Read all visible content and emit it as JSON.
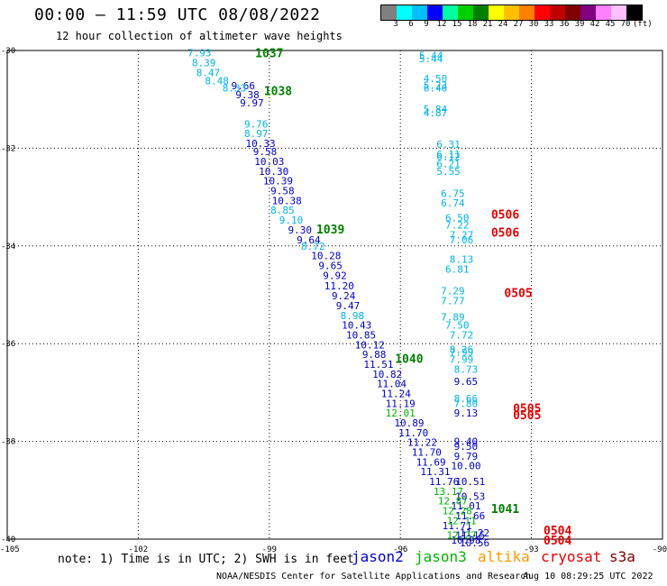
{
  "header": {
    "title": "00:00 – 11:59 UTC 08/08/2022",
    "subtitle": "12 hour collection of altimeter wave heights"
  },
  "colorbar": {
    "colors": [
      "#808080",
      "#00ffff",
      "#00c0ff",
      "#0000ff",
      "#00ffa0",
      "#00d000",
      "#008000",
      "#ffff00",
      "#ffc000",
      "#ff8000",
      "#ff0000",
      "#c00000",
      "#800000",
      "#800080",
      "#ff80ff",
      "#ffc0ff",
      "#000000"
    ],
    "labels": [
      "3",
      "6",
      "9",
      "12",
      "15",
      "18",
      "21",
      "24",
      "27",
      "30",
      "33",
      "36",
      "39",
      "42",
      "45",
      "70"
    ],
    "unit": "(ft)"
  },
  "chart_data": {
    "type": "scatter",
    "xlim": [
      -105,
      -90
    ],
    "ylim": [
      -40,
      -30
    ],
    "x_ticks": [
      -105,
      -102,
      -99,
      -96,
      -93,
      -90
    ],
    "x_tick_labels": [
      "-105",
      "-102",
      "-99",
      "-96",
      "-93",
      "-90"
    ],
    "y_ticks": [
      -30,
      -32,
      -34,
      -36,
      -38,
      -40
    ],
    "y_tick_labels": [
      "-30",
      "-32",
      "-34",
      "-36",
      "-38",
      "-40"
    ],
    "grid": true,
    "series": [
      {
        "name": "jason2",
        "color": "#0000c8",
        "points": [
          [
            -99.6,
            -30.72,
            "9.66"
          ],
          [
            -99.5,
            -30.9,
            "9.38"
          ],
          [
            -99.4,
            -31.07,
            "9.97"
          ],
          [
            -99.2,
            -31.9,
            "10.33"
          ],
          [
            -99.1,
            -32.07,
            "9.58"
          ],
          [
            -99.0,
            -32.27,
            "10.03"
          ],
          [
            -98.9,
            -32.47,
            "10.30"
          ],
          [
            -98.8,
            -32.67,
            "10.39"
          ],
          [
            -98.7,
            -32.87,
            "9.58"
          ],
          [
            -98.6,
            -33.07,
            "10.38"
          ],
          [
            -98.3,
            -33.67,
            "9.30"
          ],
          [
            -98.1,
            -33.87,
            "9.64"
          ],
          [
            -97.7,
            -34.2,
            "10.28"
          ],
          [
            -97.6,
            -34.4,
            "9.65"
          ],
          [
            -97.5,
            -34.6,
            "9.92"
          ],
          [
            -97.4,
            -34.82,
            "11.20"
          ],
          [
            -97.3,
            -35.02,
            "9.24"
          ],
          [
            -97.2,
            -35.22,
            "9.47"
          ],
          [
            -97.0,
            -35.62,
            "10.43"
          ],
          [
            -96.9,
            -35.82,
            "10.85"
          ],
          [
            -96.7,
            -36.02,
            "10.12"
          ],
          [
            -96.6,
            -36.22,
            "9.88"
          ],
          [
            -96.5,
            -36.42,
            "11.51"
          ],
          [
            -96.3,
            -36.62,
            "10.82"
          ],
          [
            -96.2,
            -36.82,
            "11.04"
          ],
          [
            -96.1,
            -37.02,
            "11.24"
          ],
          [
            -96.0,
            -37.22,
            "11.19"
          ],
          [
            -95.8,
            -37.62,
            "10.89"
          ],
          [
            -95.7,
            -37.82,
            "11.70"
          ],
          [
            -95.5,
            -38.02,
            "11.22"
          ],
          [
            -95.4,
            -38.22,
            "11.70"
          ],
          [
            -95.3,
            -38.42,
            "11.69"
          ],
          [
            -95.2,
            -38.62,
            "11.31"
          ],
          [
            -95.0,
            -38.82,
            "11.76"
          ],
          [
            -94.5,
            -36.77,
            "9.65"
          ],
          [
            -94.5,
            -37.42,
            "9.13"
          ],
          [
            -94.5,
            -38.0,
            "9.40"
          ],
          [
            -94.5,
            -38.1,
            "9.50"
          ],
          [
            -94.5,
            -38.3,
            "9.79"
          ],
          [
            -94.5,
            -38.5,
            "10.00"
          ],
          [
            -94.4,
            -38.82,
            "10.51"
          ],
          [
            -94.4,
            -39.12,
            "10.53"
          ],
          [
            -94.5,
            -39.32,
            "11.01"
          ],
          [
            -94.4,
            -39.52,
            "11.66"
          ],
          [
            -94.7,
            -39.72,
            "11.71"
          ],
          [
            -94.3,
            -39.87,
            "11.22"
          ],
          [
            -94.4,
            -39.92,
            "11.15"
          ],
          [
            -94.5,
            -40.02,
            "10.98"
          ],
          [
            -94.3,
            -40.07,
            "10.56"
          ]
        ]
      },
      {
        "name": "jason3",
        "color": "#00b400",
        "points": [
          [
            -96.0,
            -37.42,
            "12.01"
          ],
          [
            -94.9,
            -39.02,
            "13.17"
          ],
          [
            -94.8,
            -39.22,
            "12.87"
          ],
          [
            -94.7,
            -39.42,
            "12.28"
          ],
          [
            -94.6,
            -39.62,
            "12.11"
          ],
          [
            -94.6,
            -39.92,
            "12.27"
          ]
        ]
      },
      {
        "name": "cyan",
        "color": "#00b4e6",
        "points": [
          [
            -100.6,
            -30.05,
            "7.93"
          ],
          [
            -100.5,
            -30.25,
            "8.39"
          ],
          [
            -100.4,
            -30.45,
            "8.47"
          ],
          [
            -100.2,
            -30.62,
            "8.48"
          ],
          [
            -99.8,
            -30.77,
            "8.33"
          ],
          [
            -99.3,
            -31.5,
            "9.76"
          ],
          [
            -99.3,
            -31.7,
            "8.97"
          ],
          [
            -98.7,
            -33.27,
            "8.85"
          ],
          [
            -98.5,
            -33.47,
            "9.10"
          ],
          [
            -98.0,
            -34.0,
            "8.72"
          ],
          [
            -97.1,
            -35.42,
            "8.98"
          ],
          [
            -95.3,
            -30.1,
            "5.44"
          ],
          [
            -95.3,
            -30.17,
            "5.44"
          ],
          [
            -95.2,
            -30.57,
            "4.50"
          ],
          [
            -95.2,
            -30.71,
            "5.23"
          ],
          [
            -95.2,
            -30.77,
            "6.46"
          ],
          [
            -95.2,
            -31.2,
            "5.84"
          ],
          [
            -95.2,
            -31.27,
            "4.87"
          ],
          [
            -94.9,
            -31.92,
            "6.31"
          ],
          [
            -94.9,
            -32.12,
            "6.11"
          ],
          [
            -94.9,
            -32.17,
            "6.12"
          ],
          [
            -94.9,
            -32.32,
            "6.21"
          ],
          [
            -94.9,
            -32.47,
            "5.55"
          ],
          [
            -94.8,
            -32.92,
            "6.75"
          ],
          [
            -94.8,
            -33.12,
            "6.74"
          ],
          [
            -94.7,
            -33.42,
            "6.50"
          ],
          [
            -94.7,
            -33.57,
            "7.22"
          ],
          [
            -94.6,
            -33.77,
            "7.27"
          ],
          [
            -94.6,
            -33.87,
            "7.06"
          ],
          [
            -94.6,
            -34.27,
            "8.13"
          ],
          [
            -94.7,
            -34.47,
            "6.81"
          ],
          [
            -94.8,
            -34.92,
            "7.29"
          ],
          [
            -94.8,
            -35.12,
            "7.77"
          ],
          [
            -94.8,
            -35.45,
            "7.89"
          ],
          [
            -94.7,
            -35.62,
            "7.50"
          ],
          [
            -94.6,
            -35.82,
            "7.72"
          ],
          [
            -94.6,
            -36.12,
            "8.26"
          ],
          [
            -94.6,
            -36.17,
            "7.99"
          ],
          [
            -94.6,
            -36.32,
            "7.99"
          ],
          [
            -94.5,
            -36.52,
            "8.73"
          ],
          [
            -94.5,
            -37.12,
            "8.66"
          ],
          [
            -94.5,
            -37.22,
            "7.80"
          ]
        ]
      }
    ],
    "annotations": [
      {
        "text": "1037",
        "x": -99.0,
        "y": -30.05,
        "color": "#008000"
      },
      {
        "text": "1038",
        "x": -98.8,
        "y": -30.82,
        "color": "#008000"
      },
      {
        "text": "1039",
        "x": -97.6,
        "y": -33.65,
        "color": "#008000"
      },
      {
        "text": "1040",
        "x": -95.8,
        "y": -36.3,
        "color": "#008000"
      },
      {
        "text": "1041",
        "x": -93.6,
        "y": -39.37,
        "color": "#008000"
      },
      {
        "text": "0506",
        "x": -93.6,
        "y": -33.35,
        "color": "#e60000"
      },
      {
        "text": "0506",
        "x": -93.6,
        "y": -33.72,
        "color": "#e60000"
      },
      {
        "text": "0505",
        "x": -93.3,
        "y": -34.95,
        "color": "#e60000"
      },
      {
        "text": "0505",
        "x": -93.1,
        "y": -37.32,
        "color": "#e60000"
      },
      {
        "text": "0505",
        "x": -93.1,
        "y": -37.45,
        "color": "#e60000"
      },
      {
        "text": "0504",
        "x": -92.4,
        "y": -39.82,
        "color": "#e60000"
      },
      {
        "text": "0504",
        "x": -92.4,
        "y": -40.02,
        "color": "#e60000"
      }
    ]
  },
  "footer": {
    "note": "note: 1) Time is in UTC; 2) SWH is in feet",
    "missions": [
      {
        "label": "jason2",
        "color": "#0000dc"
      },
      {
        "label": "jason3",
        "color": "#00b400"
      },
      {
        "label": "altika",
        "color": "#ff9600"
      },
      {
        "label": "cryosat",
        "color": "#e60000"
      },
      {
        "label": "s3a",
        "color": "#800000"
      }
    ],
    "credit": "NOAA/NESDIS Center for Satellite Applications and Research",
    "timestamp": "Aug 10 08:29:25 UTC 2022"
  }
}
